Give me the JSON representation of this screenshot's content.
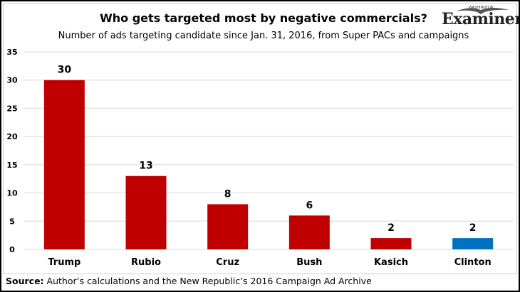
{
  "chart_data": {
    "type": "bar",
    "title": "Who gets targeted most by negative commercials?",
    "subtitle": "Number of ads targeting candidate since Jan. 31, 2016, from Super PACs and campaigns",
    "categories": [
      "Trump",
      "Rubio",
      "Cruz",
      "Bush",
      "Kasich",
      "Clinton"
    ],
    "values": [
      30,
      13,
      8,
      6,
      2,
      2
    ],
    "colors": [
      "#c00000",
      "#c00000",
      "#c00000",
      "#c00000",
      "#c00000",
      "#0070c0"
    ],
    "ylim": [
      0,
      35
    ],
    "yticks": [
      0,
      5,
      10,
      15,
      20,
      25,
      30,
      35
    ],
    "grid": true,
    "xlabel": "",
    "ylabel": ""
  },
  "source": {
    "label": "Source:",
    "text": " Author’s calculations and the New Republic’s 2016 Campaign Ad Archive"
  },
  "logo": {
    "text": "Examiner",
    "small": "WASHINGTON"
  }
}
